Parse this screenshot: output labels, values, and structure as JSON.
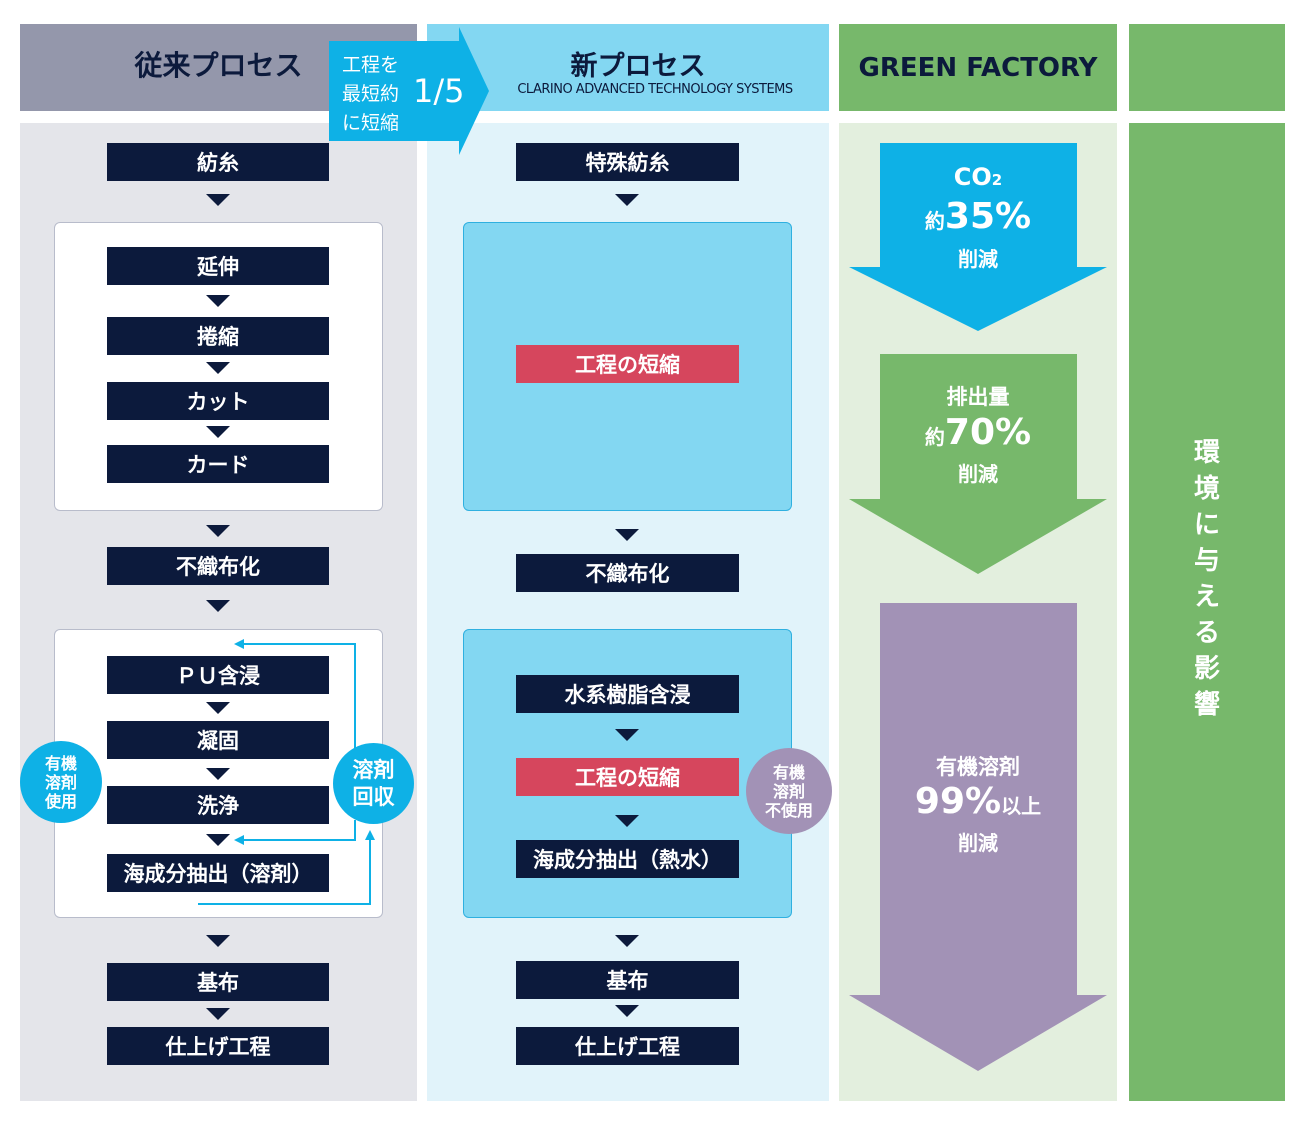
{
  "colors": {
    "conventional_bg": "#e4e5ea",
    "conventional_header": "#9497ab",
    "new_bg": "#e1f3fa",
    "new_header": "#83d7f2",
    "green_bg": "#e3efde",
    "green": "#77b86b",
    "box": "#0c1a3c",
    "accent_red": "#d6465d",
    "cyan": "#0eb1e6",
    "purple": "#a292b6"
  },
  "headers": {
    "conventional": "従来プロセス",
    "new_title": "新プロセス",
    "new_sub": "CLARINO ADVANCED TECHNOLOGY SYSTEMS",
    "green": "GREEN FACTORY"
  },
  "banner": {
    "line1": "工程を",
    "line2": "最短約",
    "line3": "に短縮",
    "fraction": "1/5"
  },
  "conventional": {
    "spinning": "紡糸",
    "stretch": "延伸",
    "crimp": "捲縮",
    "cut": "カット",
    "card": "カード",
    "nonwoven": "不織布化",
    "pu": "ＰＵ含浸",
    "coag": "凝固",
    "wash": "洗浄",
    "extract": "海成分抽出（溶剤）",
    "base": "基布",
    "finish": "仕上げ工程",
    "solvent_use": [
      "有機",
      "溶剤",
      "使用"
    ],
    "recovery": [
      "溶剤",
      "回収"
    ]
  },
  "newproc": {
    "spinning": "特殊紡糸",
    "short1": "工程の短縮",
    "nonwoven": "不織布化",
    "resin": "水系樹脂含浸",
    "short2": "工程の短縮",
    "extract": "海成分抽出（熱水）",
    "base": "基布",
    "finish": "仕上げ工程",
    "no_solvent": [
      "有機",
      "溶剤",
      "不使用"
    ]
  },
  "impact": {
    "co2": {
      "label": "CO",
      "sub": "2",
      "prefix": "約",
      "value": "35%",
      "suffix": "削減"
    },
    "waste": {
      "label": "排出量",
      "prefix": "約",
      "value": "70%",
      "suffix": "削減"
    },
    "solvent": {
      "label": "有機溶剤",
      "value": "99%",
      "value_suffix": "以上",
      "suffix": "削減"
    }
  },
  "side": {
    "chars": [
      "環",
      "境",
      "に",
      "与",
      "え",
      "る",
      "影",
      "響"
    ]
  }
}
